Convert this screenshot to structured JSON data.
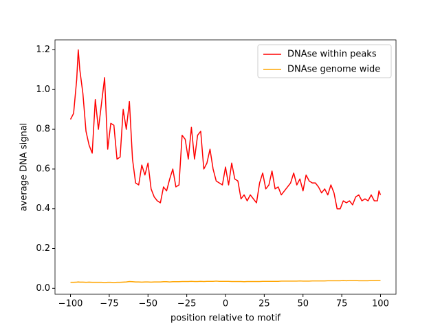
{
  "chart_data": {
    "type": "line",
    "xlabel": "position relative to motif",
    "ylabel": "average DNA signal",
    "x": [
      -100,
      -98,
      -96,
      -95,
      -94,
      -92,
      -90,
      -88,
      -86,
      -84,
      -82,
      -80,
      -78,
      -76,
      -74,
      -72,
      -70,
      -68,
      -66,
      -64,
      -62,
      -60,
      -58,
      -56,
      -54,
      -52,
      -50,
      -48,
      -46,
      -44,
      -42,
      -40,
      -38,
      -36,
      -34,
      -32,
      -30,
      -28,
      -26,
      -24,
      -22,
      -20,
      -18,
      -16,
      -14,
      -12,
      -10,
      -8,
      -6,
      -4,
      -2,
      0,
      2,
      4,
      6,
      8,
      10,
      12,
      14,
      16,
      18,
      20,
      22,
      24,
      26,
      28,
      30,
      32,
      34,
      36,
      38,
      40,
      42,
      44,
      46,
      48,
      50,
      52,
      54,
      56,
      58,
      60,
      62,
      64,
      66,
      68,
      70,
      72,
      74,
      76,
      78,
      80,
      82,
      84,
      86,
      88,
      90,
      92,
      94,
      96,
      98,
      99,
      100
    ],
    "series": [
      {
        "name": "DNAse within peaks",
        "color": "#ff0000",
        "values": [
          0.85,
          0.88,
          1.05,
          1.2,
          1.1,
          0.98,
          0.79,
          0.72,
          0.68,
          0.95,
          0.8,
          0.93,
          1.06,
          0.7,
          0.83,
          0.82,
          0.65,
          0.66,
          0.9,
          0.8,
          0.94,
          0.65,
          0.53,
          0.52,
          0.62,
          0.57,
          0.63,
          0.5,
          0.46,
          0.44,
          0.43,
          0.51,
          0.49,
          0.55,
          0.6,
          0.51,
          0.52,
          0.77,
          0.75,
          0.65,
          0.81,
          0.65,
          0.77,
          0.79,
          0.6,
          0.63,
          0.7,
          0.6,
          0.54,
          0.53,
          0.52,
          0.61,
          0.52,
          0.63,
          0.55,
          0.54,
          0.45,
          0.47,
          0.44,
          0.47,
          0.45,
          0.43,
          0.53,
          0.58,
          0.5,
          0.52,
          0.59,
          0.5,
          0.51,
          0.47,
          0.49,
          0.51,
          0.53,
          0.58,
          0.52,
          0.55,
          0.49,
          0.57,
          0.54,
          0.53,
          0.53,
          0.51,
          0.48,
          0.5,
          0.47,
          0.52,
          0.48,
          0.4,
          0.4,
          0.44,
          0.43,
          0.44,
          0.42,
          0.46,
          0.47,
          0.44,
          0.45,
          0.44,
          0.47,
          0.44,
          0.44,
          0.49,
          0.47
        ]
      },
      {
        "name": "DNAse genome wide",
        "color": "#ffa500",
        "values": [
          0.03,
          0.03,
          0.031,
          0.032,
          0.031,
          0.031,
          0.03,
          0.031,
          0.03,
          0.03,
          0.03,
          0.03,
          0.029,
          0.03,
          0.03,
          0.029,
          0.03,
          0.03,
          0.031,
          0.032,
          0.034,
          0.033,
          0.032,
          0.032,
          0.031,
          0.032,
          0.032,
          0.031,
          0.032,
          0.032,
          0.032,
          0.033,
          0.033,
          0.032,
          0.033,
          0.033,
          0.033,
          0.034,
          0.034,
          0.034,
          0.035,
          0.034,
          0.034,
          0.035,
          0.034,
          0.035,
          0.035,
          0.035,
          0.036,
          0.035,
          0.035,
          0.035,
          0.035,
          0.034,
          0.034,
          0.034,
          0.034,
          0.033,
          0.034,
          0.034,
          0.034,
          0.034,
          0.034,
          0.035,
          0.035,
          0.035,
          0.035,
          0.035,
          0.035,
          0.036,
          0.036,
          0.036,
          0.036,
          0.036,
          0.036,
          0.037,
          0.036,
          0.036,
          0.036,
          0.037,
          0.037,
          0.037,
          0.037,
          0.037,
          0.038,
          0.038,
          0.038,
          0.038,
          0.038,
          0.039,
          0.038,
          0.039,
          0.039,
          0.039,
          0.038,
          0.038,
          0.038,
          0.038,
          0.039,
          0.039,
          0.04,
          0.04,
          0.04
        ]
      }
    ],
    "xlim": [
      -110,
      110
    ],
    "ylim": [
      -0.03,
      1.25
    ],
    "xticks": [
      {
        "value": -100,
        "label": "−100"
      },
      {
        "value": -75,
        "label": "−75"
      },
      {
        "value": -50,
        "label": "−50"
      },
      {
        "value": -25,
        "label": "−25"
      },
      0,
      25,
      50,
      75,
      100
    ],
    "yticks": [
      {
        "value": 0,
        "label": "0.0"
      },
      0.2,
      0.4,
      0.6,
      0.8,
      {
        "value": 1,
        "label": "1.0"
      },
      1.2
    ],
    "legend": "upper right"
  }
}
